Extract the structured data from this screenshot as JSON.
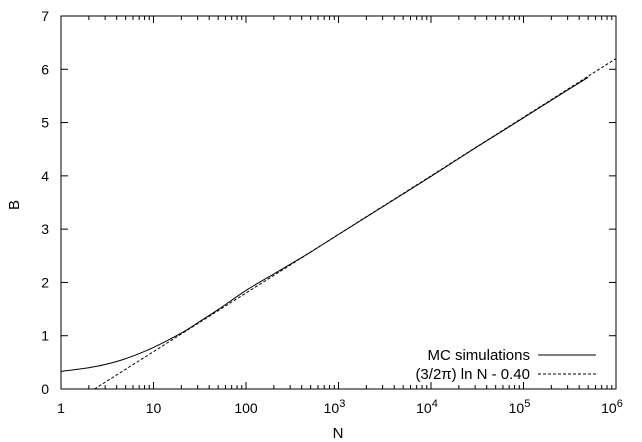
{
  "chart_data": {
    "type": "line",
    "xlabel": "N",
    "ylabel": "B",
    "x_scale": "log10",
    "xlim": [
      1,
      1000000
    ],
    "ylim": [
      0,
      7
    ],
    "grid": false,
    "legend_position": "bottom-right",
    "x_ticks": [
      {
        "value": 1,
        "label": "1"
      },
      {
        "value": 10,
        "label": "10"
      },
      {
        "value": 100,
        "label": "100"
      },
      {
        "value": 1000,
        "base": "10",
        "exp": "3"
      },
      {
        "value": 10000,
        "base": "10",
        "exp": "4"
      },
      {
        "value": 100000,
        "base": "10",
        "exp": "5"
      },
      {
        "value": 1000000,
        "base": "10",
        "exp": "6"
      }
    ],
    "y_ticks": [
      {
        "value": 0,
        "label": "0"
      },
      {
        "value": 1,
        "label": "1"
      },
      {
        "value": 2,
        "label": "2"
      },
      {
        "value": 3,
        "label": "3"
      },
      {
        "value": 4,
        "label": "4"
      },
      {
        "value": 5,
        "label": "5"
      },
      {
        "value": 6,
        "label": "6"
      },
      {
        "value": 7,
        "label": "7"
      }
    ],
    "series": [
      {
        "name": "MC simulations",
        "style": "solid",
        "color": "#000000",
        "x": [
          1,
          2,
          3,
          5,
          10,
          20,
          30,
          50,
          100,
          200,
          300,
          500,
          1000,
          3000,
          10000,
          30000,
          100000,
          300000,
          500000
        ],
        "y": [
          0.33,
          0.4,
          0.46,
          0.57,
          0.78,
          1.05,
          1.24,
          1.49,
          1.85,
          2.16,
          2.34,
          2.57,
          2.9,
          3.42,
          3.99,
          4.52,
          5.09,
          5.61,
          5.85
        ]
      },
      {
        "name": "(3/2π) ln N  -  0.40",
        "style": "dashed",
        "color": "#000000",
        "x": [
          2.3,
          1000000
        ],
        "y": [
          0.0,
          6.2
        ]
      }
    ]
  }
}
